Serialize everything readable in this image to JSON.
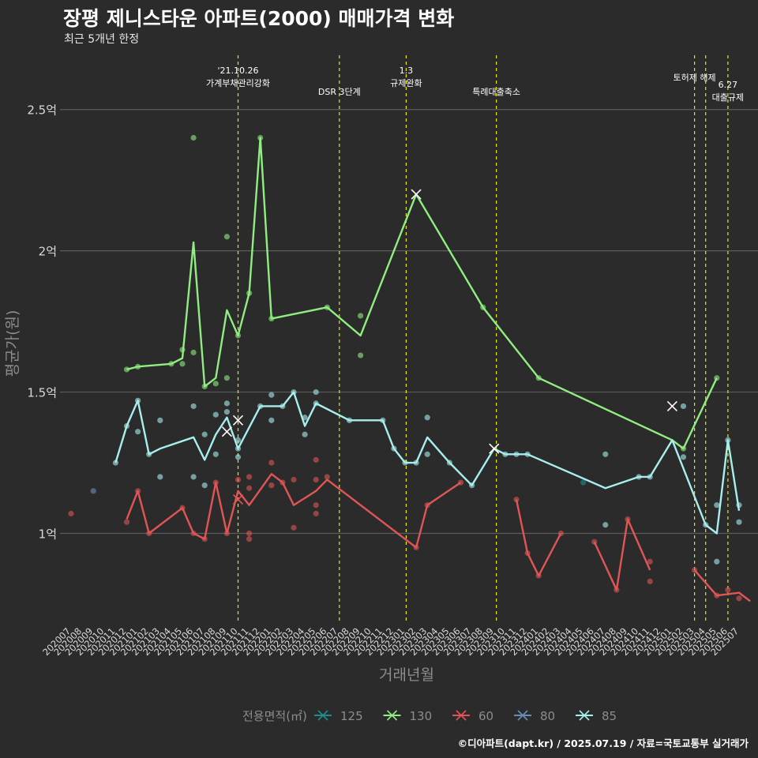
{
  "header": {
    "title": "장평 제니스타운 아파트(2000) 매매가격 변화",
    "subtitle": "최근 5개년 한정"
  },
  "footer": {
    "credit": "©디아파트(dapt.kr) / 2025.07.19 / 자료=국토교통부 실거래가"
  },
  "colors": {
    "background": "#2b2b2b",
    "grid": "#5c5c5c",
    "event_line": "#e8e800",
    "axis_text": "#d9d9d9",
    "axis_title": "#8c8c8c"
  },
  "chart_data": {
    "type": "line",
    "xlabel": "거래년월",
    "ylabel": "평균가(원)",
    "categories": [
      "202007",
      "202008",
      "202009",
      "202010",
      "202011",
      "202012",
      "202101",
      "202102",
      "202103",
      "202104",
      "202105",
      "202106",
      "202107",
      "202108",
      "202109",
      "202110",
      "202111",
      "202112",
      "202201",
      "202202",
      "202203",
      "202204",
      "202205",
      "202206",
      "202207",
      "202208",
      "202209",
      "202210",
      "202211",
      "202212",
      "202301",
      "202302",
      "202303",
      "202304",
      "202305",
      "202306",
      "202307",
      "202308",
      "202309",
      "202310",
      "202311",
      "202312",
      "202401",
      "202402",
      "202403",
      "202404",
      "202405",
      "202406",
      "202407",
      "202408",
      "202409",
      "202410",
      "202411",
      "202412",
      "202501",
      "202502",
      "202503",
      "202504",
      "202505",
      "202506",
      "202507"
    ],
    "y_unit": "억",
    "ylim": [
      0.68,
      2.72
    ],
    "yticks": [
      {
        "value": 1,
        "label": "1억"
      },
      {
        "value": 1.5,
        "label": "1.5억"
      },
      {
        "value": 2,
        "label": "2억"
      },
      {
        "value": 2.5,
        "label": "2.5억"
      }
    ],
    "grid": true,
    "legend": {
      "title": "전용면적(㎡)",
      "position": "bottom",
      "items": [
        {
          "label": "125",
          "color": "#1e8c8c"
        },
        {
          "label": "130",
          "color": "#90ee80"
        },
        {
          "label": "60",
          "color": "#e05555"
        },
        {
          "label": "80",
          "color": "#6a8cb8"
        },
        {
          "label": "85",
          "color": "#a8eeee"
        }
      ]
    },
    "events": [
      {
        "x": 15.0,
        "lines": [
          "'21.10.26",
          "가계부채관리강화"
        ],
        "row": 0
      },
      {
        "x": 24.1,
        "lines": [
          "DSR 3단계"
        ],
        "row": 2
      },
      {
        "x": 30.1,
        "lines": [
          "1.3",
          "규제완화"
        ],
        "row": 0
      },
      {
        "x": 38.2,
        "lines": [
          "특례대출축소"
        ],
        "row": 2
      },
      {
        "x": 56.0,
        "lines": [
          "토허제 해제"
        ],
        "row": 1
      },
      {
        "x": 57.0,
        "lines": [],
        "row": 0
      },
      {
        "x": 59.0,
        "lines": [
          "6.27",
          "대출규제"
        ],
        "row": 1.7
      }
    ],
    "series": [
      {
        "name": "130",
        "color": "#90ee80",
        "line": [
          [
            5,
            1.58
          ],
          [
            6,
            1.59
          ],
          [
            9,
            1.6
          ],
          [
            10,
            1.62
          ],
          [
            11,
            2.03
          ],
          [
            12,
            1.52
          ],
          [
            13,
            1.55
          ],
          [
            14,
            1.79
          ],
          [
            15,
            1.7
          ],
          [
            16,
            1.85
          ],
          [
            17,
            2.4
          ],
          [
            18,
            1.76
          ],
          [
            23,
            1.8
          ],
          [
            26,
            1.7
          ],
          [
            31,
            2.2
          ],
          [
            37,
            1.8
          ],
          [
            42,
            1.55
          ],
          [
            54,
            1.33
          ],
          [
            55,
            1.3
          ],
          [
            58,
            1.55
          ]
        ],
        "points": [
          [
            5,
            1.58
          ],
          [
            6,
            1.59
          ],
          [
            9,
            1.6
          ],
          [
            10,
            1.6
          ],
          [
            10,
            1.65
          ],
          [
            11,
            2.4
          ],
          [
            11,
            1.64
          ],
          [
            12,
            1.52
          ],
          [
            13,
            1.53
          ],
          [
            14,
            2.05
          ],
          [
            14,
            1.55
          ],
          [
            15,
            1.7
          ],
          [
            16,
            1.85
          ],
          [
            17,
            2.4
          ],
          [
            18,
            1.76
          ],
          [
            23,
            1.8
          ],
          [
            26,
            1.77
          ],
          [
            26,
            1.63
          ],
          [
            37,
            1.8
          ],
          [
            42,
            1.55
          ],
          [
            55,
            1.3
          ],
          [
            58,
            1.55
          ]
        ],
        "x_marks": [
          [
            31,
            2.2
          ]
        ]
      },
      {
        "name": "85",
        "color": "#a8eeee",
        "line": [
          [
            4,
            1.25
          ],
          [
            5,
            1.38
          ],
          [
            6,
            1.47
          ],
          [
            7,
            1.28
          ],
          [
            8,
            1.3
          ],
          [
            11,
            1.34
          ],
          [
            12,
            1.26
          ],
          [
            13,
            1.35
          ],
          [
            14,
            1.41
          ],
          [
            15,
            1.3
          ],
          [
            17,
            1.45
          ],
          [
            18,
            1.45
          ],
          [
            19,
            1.45
          ],
          [
            20,
            1.5
          ],
          [
            21,
            1.38
          ],
          [
            22,
            1.46
          ],
          [
            25,
            1.4
          ],
          [
            28,
            1.4
          ],
          [
            29,
            1.3
          ],
          [
            30,
            1.25
          ],
          [
            31,
            1.25
          ],
          [
            32,
            1.34
          ],
          [
            34,
            1.25
          ],
          [
            36,
            1.17
          ],
          [
            38,
            1.3
          ],
          [
            39,
            1.28
          ],
          [
            40,
            1.28
          ],
          [
            41,
            1.28
          ],
          [
            48,
            1.16
          ],
          [
            51,
            1.2
          ],
          [
            52,
            1.2
          ],
          [
            54,
            1.33
          ],
          [
            57,
            1.03
          ],
          [
            58,
            1.0
          ],
          [
            59,
            1.33
          ],
          [
            60,
            1.08
          ]
        ],
        "points": [
          [
            4,
            1.25
          ],
          [
            5,
            1.38
          ],
          [
            6,
            1.47
          ],
          [
            6,
            1.36
          ],
          [
            7,
            1.28
          ],
          [
            8,
            1.4
          ],
          [
            8,
            1.2
          ],
          [
            11,
            1.45
          ],
          [
            11,
            1.2
          ],
          [
            12,
            1.35
          ],
          [
            12,
            1.17
          ],
          [
            13,
            1.42
          ],
          [
            13,
            1.28
          ],
          [
            14,
            1.43
          ],
          [
            14,
            1.46
          ],
          [
            15,
            1.3
          ],
          [
            15,
            1.27
          ],
          [
            15,
            1.33
          ],
          [
            17,
            1.45
          ],
          [
            18,
            1.49
          ],
          [
            18,
            1.4
          ],
          [
            19,
            1.45
          ],
          [
            20,
            1.5
          ],
          [
            21,
            1.41
          ],
          [
            21,
            1.35
          ],
          [
            22,
            1.5
          ],
          [
            22,
            1.46
          ],
          [
            25,
            1.4
          ],
          [
            28,
            1.4
          ],
          [
            29,
            1.3
          ],
          [
            30,
            1.25
          ],
          [
            31,
            1.25
          ],
          [
            32,
            1.41
          ],
          [
            32,
            1.28
          ],
          [
            34,
            1.25
          ],
          [
            36,
            1.17
          ],
          [
            39,
            1.28
          ],
          [
            40,
            1.28
          ],
          [
            41,
            1.28
          ],
          [
            48,
            1.28
          ],
          [
            48,
            1.03
          ],
          [
            51,
            1.2
          ],
          [
            52,
            1.2
          ],
          [
            55,
            1.45
          ],
          [
            55,
            1.27
          ],
          [
            57,
            1.03
          ],
          [
            58,
            1.1
          ],
          [
            58,
            0.9
          ],
          [
            59,
            1.33
          ],
          [
            60,
            1.1
          ],
          [
            60,
            1.04
          ]
        ],
        "x_marks": [
          [
            14,
            1.36
          ],
          [
            15,
            1.4
          ],
          [
            38,
            1.3
          ],
          [
            54,
            1.45
          ]
        ]
      },
      {
        "name": "60",
        "color": "#e05555",
        "line": [
          [
            5,
            1.05
          ],
          [
            6,
            1.15
          ],
          [
            7,
            1.0
          ],
          [
            10,
            1.09
          ],
          [
            11,
            1.0
          ],
          [
            12,
            0.98
          ],
          [
            13,
            1.18
          ],
          [
            14,
            1.0
          ],
          [
            15,
            1.15
          ],
          [
            16,
            1.1
          ],
          [
            18,
            1.21
          ],
          [
            19,
            1.18
          ],
          [
            20,
            1.1
          ],
          [
            22,
            1.15
          ],
          [
            23,
            1.19
          ],
          [
            25,
            1.13
          ],
          [
            31,
            0.95
          ],
          [
            32,
            1.1
          ],
          [
            35,
            1.18
          ]
        ],
        "points": [
          [
            0,
            1.07
          ],
          [
            5,
            1.04
          ],
          [
            6,
            1.15
          ],
          [
            7,
            1.0
          ],
          [
            10,
            1.09
          ],
          [
            11,
            1.0
          ],
          [
            12,
            0.98
          ],
          [
            13,
            1.18
          ],
          [
            14,
            1.0
          ],
          [
            15,
            1.19
          ],
          [
            16,
            1.2
          ],
          [
            16,
            1.16
          ],
          [
            16,
            1.0
          ],
          [
            16,
            0.98
          ],
          [
            18,
            1.25
          ],
          [
            18,
            1.17
          ],
          [
            19,
            1.18
          ],
          [
            20,
            1.19
          ],
          [
            20,
            1.02
          ],
          [
            22,
            1.26
          ],
          [
            22,
            1.19
          ],
          [
            22,
            1.1
          ],
          [
            22,
            1.07
          ],
          [
            23,
            1.2
          ],
          [
            31,
            0.95
          ],
          [
            32,
            1.1
          ],
          [
            35,
            1.18
          ],
          [
            40,
            1.12
          ],
          [
            41,
            0.93
          ],
          [
            42,
            0.85
          ],
          [
            44,
            1.0
          ],
          [
            47,
            0.97
          ],
          [
            49,
            0.8
          ],
          [
            50,
            1.05
          ],
          [
            52,
            0.9
          ],
          [
            52,
            0.83
          ],
          [
            56,
            0.87
          ],
          [
            58,
            0.78
          ],
          [
            59,
            0.8
          ],
          [
            60,
            0.77
          ]
        ],
        "x_marks": [
          [
            15,
            1.12
          ]
        ],
        "extra_lines": [
          [
            [
              40,
              1.12
            ],
            [
              41,
              0.93
            ],
            [
              42,
              0.85
            ],
            [
              44,
              1.0
            ]
          ],
          [
            [
              47,
              0.97
            ],
            [
              49,
              0.8
            ],
            [
              50,
              1.05
            ],
            [
              52,
              0.87
            ]
          ],
          [
            [
              56,
              0.87
            ],
            [
              58,
              0.78
            ],
            [
              60,
              0.79
            ],
            [
              61,
              0.76
            ]
          ]
        ]
      },
      {
        "name": "80",
        "color": "#6a8cb8",
        "line": [],
        "points": [
          [
            2,
            1.15
          ]
        ],
        "x_marks": []
      },
      {
        "name": "125",
        "color": "#1e8c8c",
        "line": [],
        "points": [
          [
            46,
            1.18
          ]
        ],
        "x_marks": []
      }
    ]
  }
}
